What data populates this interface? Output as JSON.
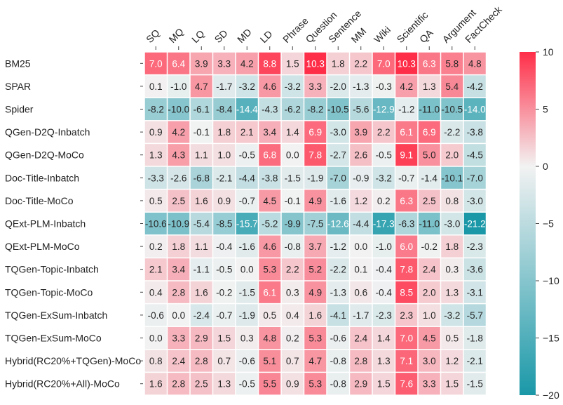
{
  "chart_data": {
    "type": "heatmap",
    "title": "",
    "xlabel": "",
    "ylabel": "",
    "columns": [
      "SQ",
      "MQ",
      "LQ",
      "SD",
      "MD",
      "LD",
      "Phrase",
      "Question",
      "Sentence",
      "MM",
      "Wiki",
      "Scientific",
      "QA",
      "Argument",
      "FactCheck"
    ],
    "rows": [
      "BM25",
      "SPAR",
      "Spider",
      "QGen-D2Q-Inbatch",
      "QGen-D2Q-MoCo",
      "Doc-Title-Inbatch",
      "Doc-Title-MoCo",
      "QExt-PLM-Inbatch",
      "QExt-PLM-MoCo",
      "TQGen-Topic-Inbatch",
      "TQGen-Topic-MoCo",
      "TQGen-ExSum-Inbatch",
      "TQGen-ExSum-MoCo",
      "Hybrid(RC20%+TQGen)-MoCo",
      "Hybrid(RC20%+All)-MoCo"
    ],
    "values": [
      [
        7.0,
        6.4,
        3.9,
        3.3,
        4.2,
        8.8,
        1.5,
        10.3,
        1.8,
        2.2,
        7.0,
        10.3,
        6.3,
        5.8,
        4.8
      ],
      [
        0.1,
        -1.0,
        4.7,
        -1.7,
        -3.2,
        4.6,
        -3.2,
        3.3,
        -2.0,
        -1.3,
        -0.3,
        4.2,
        1.3,
        5.4,
        -4.2
      ],
      [
        -8.2,
        -10.0,
        -6.1,
        -8.4,
        -14.4,
        -4.3,
        -6.2,
        -8.2,
        -10.5,
        -5.6,
        -12.9,
        -1.2,
        -11.0,
        -10.5,
        -14.0
      ],
      [
        0.9,
        4.2,
        -0.1,
        1.8,
        2.1,
        3.4,
        1.4,
        6.9,
        -3.0,
        3.9,
        2.2,
        6.1,
        6.9,
        -2.2,
        -3.8
      ],
      [
        1.3,
        4.3,
        1.1,
        1.0,
        -0.5,
        6.8,
        0.0,
        7.8,
        -2.7,
        2.6,
        -0.5,
        9.1,
        5.0,
        2.0,
        -4.5
      ],
      [
        -3.3,
        -2.6,
        -6.8,
        -2.1,
        -4.4,
        -3.8,
        -1.5,
        -1.9,
        -7.0,
        -0.9,
        -3.2,
        -0.7,
        -1.4,
        -10.1,
        -7.0
      ],
      [
        0.5,
        2.5,
        1.6,
        0.9,
        -0.7,
        4.5,
        -0.1,
        4.9,
        -1.6,
        1.2,
        0.2,
        6.3,
        2.5,
        0.8,
        -3.0
      ],
      [
        -10.6,
        -10.9,
        -5.4,
        -8.5,
        -15.7,
        -5.2,
        -9.9,
        -7.5,
        -12.6,
        -4.4,
        -17.3,
        -6.3,
        -11.0,
        -3.0,
        -21.2
      ],
      [
        0.2,
        1.8,
        1.1,
        -0.4,
        -1.6,
        4.6,
        -0.8,
        3.7,
        -1.2,
        0.0,
        -1.0,
        6.0,
        -0.2,
        1.8,
        -2.3
      ],
      [
        2.1,
        3.4,
        -1.1,
        -0.5,
        0.0,
        5.3,
        2.2,
        5.2,
        -2.2,
        0.1,
        -0.4,
        7.8,
        2.4,
        0.3,
        -3.6
      ],
      [
        0.4,
        2.8,
        1.6,
        -0.2,
        -1.5,
        6.1,
        0.3,
        4.9,
        -1.3,
        0.6,
        -0.4,
        8.5,
        2.0,
        1.3,
        -3.1
      ],
      [
        -0.6,
        0.0,
        -2.4,
        -0.7,
        -1.9,
        0.5,
        0.4,
        1.6,
        -4.1,
        -1.7,
        -2.3,
        2.3,
        1.0,
        -3.2,
        -5.7
      ],
      [
        0.0,
        3.3,
        2.9,
        1.5,
        0.3,
        4.8,
        0.2,
        5.3,
        -0.6,
        2.4,
        1.4,
        7.0,
        4.5,
        0.5,
        -1.8
      ],
      [
        0.8,
        2.4,
        2.8,
        0.7,
        -0.6,
        5.1,
        0.7,
        4.7,
        -0.8,
        2.8,
        1.3,
        7.1,
        3.0,
        1.2,
        -2.1
      ],
      [
        1.6,
        2.8,
        2.5,
        1.3,
        -0.5,
        5.5,
        0.9,
        5.3,
        -0.8,
        2.9,
        1.5,
        7.6,
        3.3,
        1.5,
        -1.5
      ]
    ],
    "vmin": -20,
    "vmax": 10,
    "center": 0,
    "colormap": {
      "low": "#1a98a8",
      "mid": "#f2f2f2",
      "high": "#ff2e48"
    },
    "colorbar": {
      "ticks": [
        10,
        5,
        0,
        -5,
        -10,
        -15,
        -20
      ],
      "tick_labels": [
        "10",
        "5",
        "0",
        "−5",
        "−10",
        "−15",
        "−20"
      ]
    },
    "cell_text_colors": {
      "light": "#ffffff",
      "dark": "#262626"
    },
    "grid": false,
    "legend": "colorbar-right"
  }
}
